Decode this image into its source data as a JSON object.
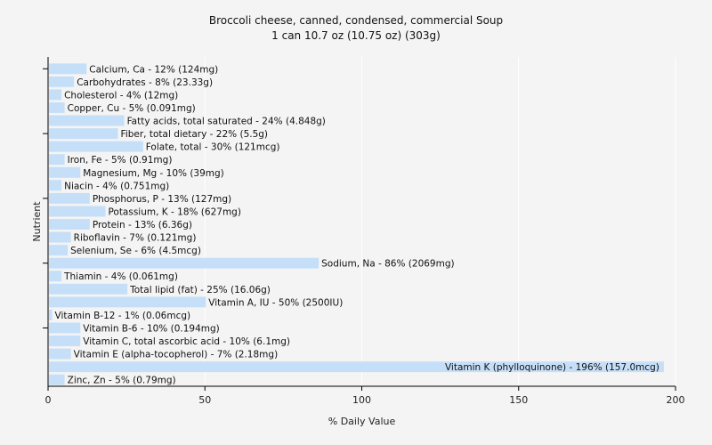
{
  "chart_data": {
    "type": "bar",
    "orientation": "horizontal",
    "title": "Broccoli cheese, canned, condensed, commercial Soup",
    "subtitle": "1 can 10.7 oz (10.75 oz) (303g)",
    "xlabel": "% Daily Value",
    "ylabel": "Nutrient",
    "xlim": [
      0,
      200
    ],
    "x_ticks": [
      0,
      50,
      100,
      150,
      200
    ],
    "grid": true,
    "bar_color": "#c6dff8",
    "background_color": "#f4f4f4",
    "categories": [
      "Calcium, Ca",
      "Carbohydrates",
      "Cholesterol",
      "Copper, Cu",
      "Fatty acids, total saturated",
      "Fiber, total dietary",
      "Folate, total",
      "Iron, Fe",
      "Magnesium, Mg",
      "Niacin",
      "Phosphorus, P",
      "Potassium, K",
      "Protein",
      "Riboflavin",
      "Selenium, Se",
      "Sodium, Na",
      "Thiamin",
      "Total lipid (fat)",
      "Vitamin A, IU",
      "Vitamin B-12",
      "Vitamin B-6",
      "Vitamin C, total ascorbic acid",
      "Vitamin E (alpha-tocopherol)",
      "Vitamin K (phylloquinone)",
      "Zinc, Zn"
    ],
    "values": [
      12,
      8,
      4,
      5,
      24,
      22,
      30,
      5,
      10,
      4,
      13,
      18,
      13,
      7,
      6,
      86,
      4,
      25,
      50,
      1,
      10,
      10,
      7,
      196,
      5
    ],
    "bar_labels": [
      "Calcium, Ca - 12% (124mg)",
      "Carbohydrates - 8% (23.33g)",
      "Cholesterol - 4% (12mg)",
      "Copper, Cu - 5% (0.091mg)",
      "Fatty acids, total saturated - 24% (4.848g)",
      "Fiber, total dietary - 22% (5.5g)",
      "Folate, total - 30% (121mcg)",
      "Iron, Fe - 5% (0.91mg)",
      "Magnesium, Mg - 10% (39mg)",
      "Niacin - 4% (0.751mg)",
      "Phosphorus, P - 13% (127mg)",
      "Potassium, K - 18% (627mg)",
      "Protein - 13% (6.36g)",
      "Riboflavin - 7% (0.121mg)",
      "Selenium, Se - 6% (4.5mcg)",
      "Sodium, Na - 86% (2069mg)",
      "Thiamin - 4% (0.061mg)",
      "Total lipid (fat) - 25% (16.06g)",
      "Vitamin A, IU - 50% (2500IU)",
      "Vitamin B-12 - 1% (0.06mcg)",
      "Vitamin B-6 - 10% (0.194mg)",
      "Vitamin C, total ascorbic acid - 10% (6.1mg)",
      "Vitamin E (alpha-tocopherol) - 7% (2.18mg)",
      "Vitamin K (phylloquinone) - 196% (157.0mcg)",
      "Zinc, Zn - 5% (0.79mg)"
    ]
  }
}
